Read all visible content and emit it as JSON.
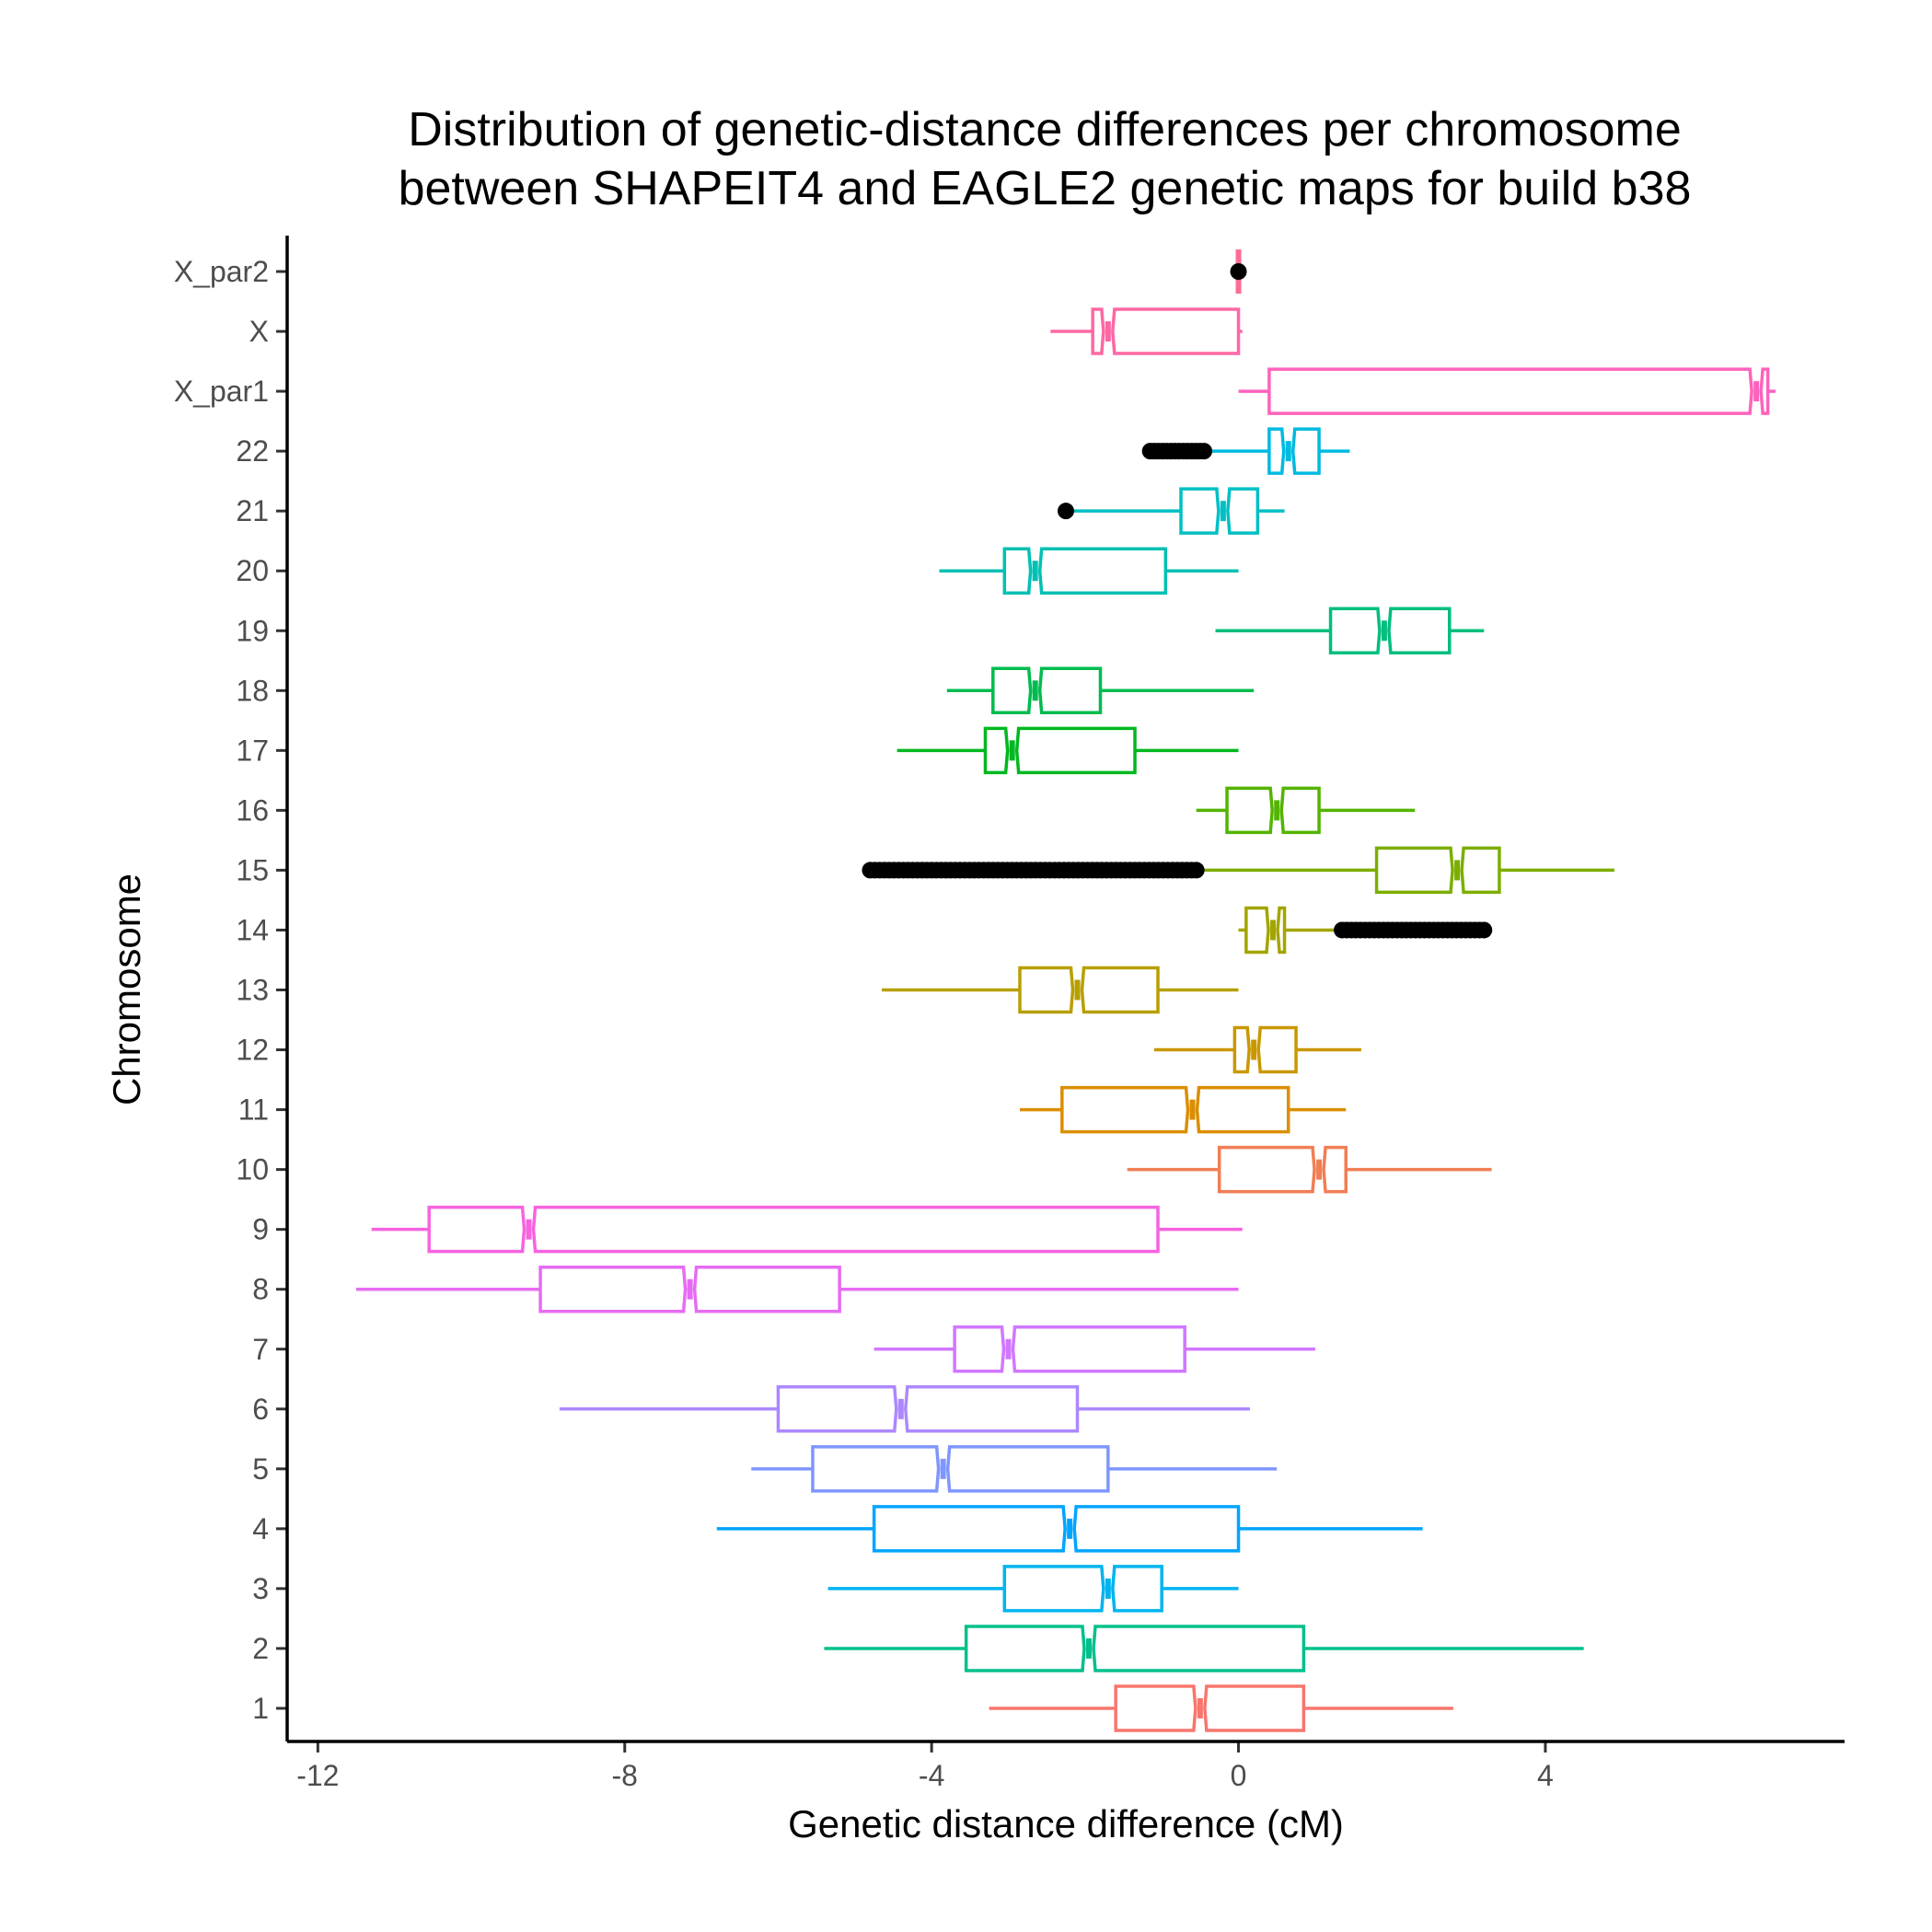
{
  "chart_data": {
    "type": "boxplot",
    "orientation": "horizontal",
    "notched": true,
    "title_lines": [
      "Distribution of genetic-distance differences per chromosome",
      "between SHAPEIT4 and  EAGLE2 genetic maps for build b38"
    ],
    "xlabel": "Genetic distance difference (cM)",
    "ylabel": "Chromosome",
    "xlim": [
      -12.4,
      7.9
    ],
    "xticks": [
      -12,
      -8,
      -4,
      0,
      4
    ],
    "xtick_labels": [
      "-12",
      "-8",
      "-4",
      "0",
      "4"
    ],
    "grid": false,
    "legend": "none",
    "categories": [
      "1",
      "2",
      "3",
      "4",
      "5",
      "6",
      "7",
      "8",
      "9",
      "10",
      "11",
      "12",
      "13",
      "14",
      "15",
      "16",
      "17",
      "18",
      "19",
      "20",
      "21",
      "22",
      "X_par1",
      "X",
      "X_par2"
    ],
    "boxes": [
      {
        "cat": "1",
        "color": "#F8766D",
        "wmin": -3.25,
        "q1": -1.6,
        "med": -0.5,
        "q3": 0.85,
        "wmax": 2.8,
        "outliers": []
      },
      {
        "cat": "2",
        "color": "#00C08B",
        "wmin": -5.4,
        "q1": -3.55,
        "med": -1.95,
        "q3": 0.85,
        "wmax": 4.5,
        "outliers": []
      },
      {
        "cat": "3",
        "color": "#00B4EF",
        "wmin": -5.35,
        "q1": -3.05,
        "med": -1.7,
        "q3": -1.0,
        "wmax": 0.0,
        "outliers": []
      },
      {
        "cat": "4",
        "color": "#00A5FF",
        "wmin": -6.8,
        "q1": -4.75,
        "med": -2.2,
        "q3": 0.0,
        "wmax": 2.4,
        "outliers": []
      },
      {
        "cat": "5",
        "color": "#7F96FF",
        "wmin": -6.35,
        "q1": -5.55,
        "med": -3.85,
        "q3": -1.7,
        "wmax": 0.5,
        "outliers": []
      },
      {
        "cat": "6",
        "color": "#AC88FF",
        "wmin": -8.85,
        "q1": -6.0,
        "med": -4.4,
        "q3": -2.1,
        "wmax": 0.15,
        "outliers": []
      },
      {
        "cat": "7",
        "color": "#D177FF",
        "wmin": -4.75,
        "q1": -3.7,
        "med": -3.0,
        "q3": -0.7,
        "wmax": 1.0,
        "outliers": []
      },
      {
        "cat": "8",
        "color": "#E76BF3",
        "wmin": -11.5,
        "q1": -9.1,
        "med": -7.15,
        "q3": -5.2,
        "wmax": 0.0,
        "outliers": []
      },
      {
        "cat": "9",
        "color": "#F763E0",
        "wmin": -11.3,
        "q1": -10.55,
        "med": -9.25,
        "q3": -1.05,
        "wmax": 0.05,
        "outliers": []
      },
      {
        "cat": "10",
        "color": "#F17E54",
        "wmin": -1.45,
        "q1": -0.25,
        "med": 1.05,
        "q3": 1.4,
        "wmax": 3.3,
        "outliers": []
      },
      {
        "cat": "11",
        "color": "#DB8E00",
        "wmin": -2.85,
        "q1": -2.3,
        "med": -0.6,
        "q3": 0.65,
        "wmax": 1.4,
        "outliers": []
      },
      {
        "cat": "12",
        "color": "#C99800",
        "wmin": -1.1,
        "q1": -0.05,
        "med": 0.2,
        "q3": 0.75,
        "wmax": 1.6,
        "outliers": []
      },
      {
        "cat": "13",
        "color": "#B79F00",
        "wmin": -4.65,
        "q1": -2.85,
        "med": -2.1,
        "q3": -1.05,
        "wmax": 0.0,
        "outliers": []
      },
      {
        "cat": "14",
        "color": "#A3A500",
        "wmin": 0.0,
        "q1": 0.1,
        "med": 0.45,
        "q3": 0.6,
        "wmax": 1.35,
        "outliers": [
          {
            "from": 1.35,
            "to": 3.2,
            "count": 32
          }
        ]
      },
      {
        "cat": "15",
        "color": "#7CAE00",
        "wmin": -0.55,
        "q1": 1.8,
        "med": 2.85,
        "q3": 3.4,
        "wmax": 4.9,
        "outliers": [
          {
            "from": -4.8,
            "to": -0.55,
            "count": 70
          }
        ]
      },
      {
        "cat": "16",
        "color": "#53B400",
        "wmin": -0.55,
        "q1": -0.15,
        "med": 0.5,
        "q3": 1.05,
        "wmax": 2.3,
        "outliers": []
      },
      {
        "cat": "17",
        "color": "#00B81F",
        "wmin": -4.45,
        "q1": -3.3,
        "med": -2.95,
        "q3": -1.35,
        "wmax": 0.0,
        "outliers": []
      },
      {
        "cat": "18",
        "color": "#00BB4E",
        "wmin": -3.8,
        "q1": -3.2,
        "med": -2.65,
        "q3": -1.8,
        "wmax": 0.2,
        "outliers": []
      },
      {
        "cat": "19",
        "color": "#00BE7D",
        "wmin": -0.3,
        "q1": 1.2,
        "med": 1.9,
        "q3": 2.75,
        "wmax": 3.2,
        "outliers": []
      },
      {
        "cat": "20",
        "color": "#00C0B4",
        "wmin": -3.9,
        "q1": -3.05,
        "med": -2.65,
        "q3": -0.95,
        "wmax": 0.0,
        "outliers": []
      },
      {
        "cat": "21",
        "color": "#00BFC4",
        "wmin": -2.25,
        "q1": -0.75,
        "med": -0.2,
        "q3": 0.25,
        "wmax": 0.6,
        "outliers": [
          {
            "from": -2.25,
            "to": -2.25,
            "count": 1
          }
        ]
      },
      {
        "cat": "22",
        "color": "#00BAE0",
        "wmin": -0.45,
        "q1": 0.4,
        "med": 0.65,
        "q3": 1.05,
        "wmax": 1.45,
        "outliers": [
          {
            "from": -1.15,
            "to": -0.45,
            "count": 14
          }
        ]
      },
      {
        "cat": "X_par1",
        "color": "#FF62BC",
        "wmin": 0.0,
        "q1": 0.4,
        "med": 6.75,
        "q3": 6.9,
        "wmax": 7.0,
        "outliers": []
      },
      {
        "cat": "X",
        "color": "#FF67A4",
        "wmin": -2.45,
        "q1": -1.9,
        "med": -1.7,
        "q3": 0.0,
        "wmax": 0.05,
        "outliers": []
      },
      {
        "cat": "X_par2",
        "color": "#FF6C91",
        "wmin": 0.0,
        "q1": 0.0,
        "med": 0.0,
        "q3": 0.0,
        "wmax": 0.0,
        "outliers": [
          {
            "from": 0.0,
            "to": 0.0,
            "count": 1
          }
        ]
      }
    ]
  }
}
